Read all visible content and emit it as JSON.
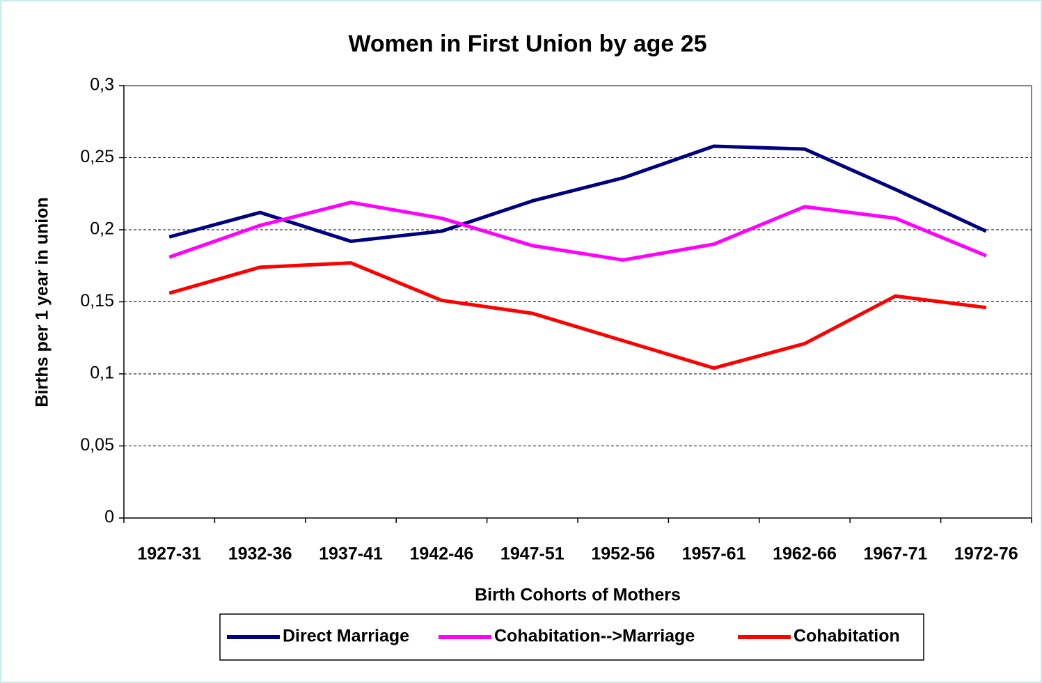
{
  "chart_data": {
    "type": "line",
    "title": "Women in First Union by age 25",
    "x_label": "Birth Cohorts of Mothers",
    "y_label": "Births per 1 year in union",
    "categories": [
      "1927-31",
      "1932-36",
      "1937-41",
      "1942-46",
      "1947-51",
      "1952-56",
      "1957-61",
      "1962-66",
      "1967-71",
      "1972-76"
    ],
    "series": [
      {
        "name": "Direct Marriage",
        "color": "#000080",
        "values": [
          0.195,
          0.212,
          0.192,
          0.199,
          0.22,
          0.236,
          0.258,
          0.256,
          0.228,
          0.199
        ]
      },
      {
        "name": "Cohabitation-->Marriage",
        "color": "#ff00ff",
        "values": [
          0.181,
          0.203,
          0.219,
          0.208,
          0.189,
          0.179,
          0.19,
          0.216,
          0.208,
          0.182
        ]
      },
      {
        "name": "Cohabitation",
        "color": "#ff0000",
        "values": [
          0.156,
          0.174,
          0.177,
          0.151,
          0.142,
          0.123,
          0.104,
          0.121,
          0.154,
          0.146
        ]
      }
    ],
    "ylim": [
      0,
      0.3
    ],
    "yticks": [
      0,
      {
        "value": 0.05,
        "label": "0,05"
      },
      {
        "value": 0.1,
        "label": "0,1"
      },
      {
        "value": 0.15,
        "label": "0,15"
      },
      {
        "value": 0.2,
        "label": "0,2"
      },
      {
        "value": 0.25,
        "label": "0,25"
      },
      {
        "value": 0.3,
        "label": "0,3"
      }
    ],
    "grid": true,
    "legend": "bottom"
  }
}
